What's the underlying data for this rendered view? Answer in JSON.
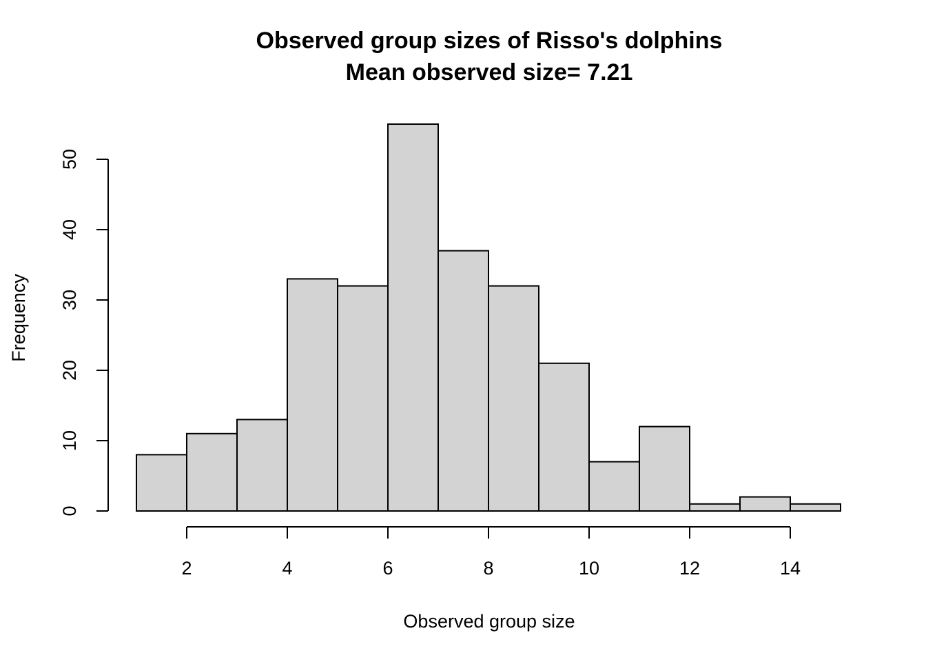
{
  "chart_data": {
    "type": "bar",
    "title": "Observed group sizes of Risso's dolphins",
    "subtitle": "Mean observed size= 7.21",
    "xlabel": "Observed group size",
    "ylabel": "Frequency",
    "bins": [
      {
        "start": 1,
        "end": 2,
        "value": 8
      },
      {
        "start": 2,
        "end": 3,
        "value": 11
      },
      {
        "start": 3,
        "end": 4,
        "value": 13
      },
      {
        "start": 4,
        "end": 5,
        "value": 33
      },
      {
        "start": 5,
        "end": 6,
        "value": 32
      },
      {
        "start": 6,
        "end": 7,
        "value": 55
      },
      {
        "start": 7,
        "end": 8,
        "value": 37
      },
      {
        "start": 8,
        "end": 9,
        "value": 32
      },
      {
        "start": 9,
        "end": 10,
        "value": 21
      },
      {
        "start": 10,
        "end": 11,
        "value": 7
      },
      {
        "start": 11,
        "end": 12,
        "value": 12
      },
      {
        "start": 12,
        "end": 13,
        "value": 1
      },
      {
        "start": 13,
        "end": 14,
        "value": 2
      },
      {
        "start": 14,
        "end": 15,
        "value": 1
      }
    ],
    "xticks": [
      2,
      4,
      6,
      8,
      10,
      12,
      14
    ],
    "yticks": [
      0,
      10,
      20,
      30,
      40,
      50
    ],
    "xlim": [
      1,
      15
    ],
    "ylim": [
      0,
      55
    ],
    "grid": false,
    "bar_color": "#d3d3d3",
    "edge_color": "#000000"
  }
}
